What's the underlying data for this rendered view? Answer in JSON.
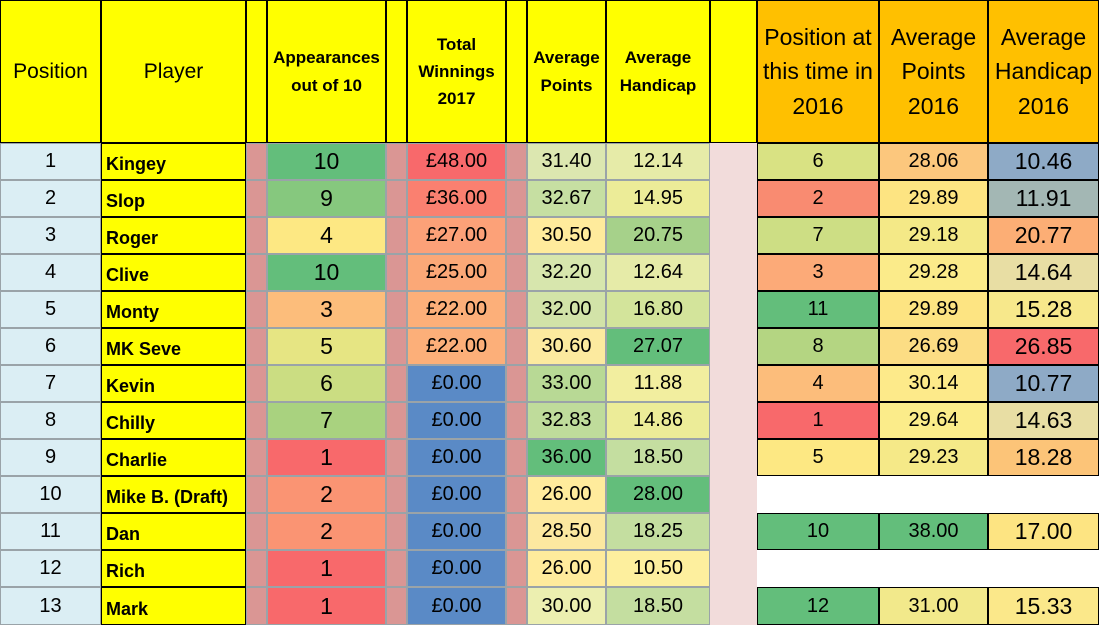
{
  "headers": {
    "position": "Position",
    "player": "Player",
    "appearances": "Appearances out of 10",
    "total_winnings": "Total Winnings 2017",
    "average_points": "Average Points",
    "average_handicap": "Average Handicap",
    "position_2016": "Position at this time in 2016",
    "average_points_2016": "Average Points 2016",
    "average_handicap_2016": "Average Handicap 2016"
  },
  "rows": [
    {
      "position": "1",
      "player": "Kingey",
      "appearances": "10",
      "winnings": "£48.00",
      "avg_points": "31.40",
      "avg_handicap": "12.14",
      "pos_2016": "6",
      "avg_points_2016": "28.06",
      "avg_handicap_2016": "10.46"
    },
    {
      "position": "2",
      "player": "Slop",
      "appearances": "9",
      "winnings": "£36.00",
      "avg_points": "32.67",
      "avg_handicap": "14.95",
      "pos_2016": "2",
      "avg_points_2016": "29.89",
      "avg_handicap_2016": "11.91"
    },
    {
      "position": "3",
      "player": "Roger",
      "appearances": "4",
      "winnings": "£27.00",
      "avg_points": "30.50",
      "avg_handicap": "20.75",
      "pos_2016": "7",
      "avg_points_2016": "29.18",
      "avg_handicap_2016": "20.77"
    },
    {
      "position": "4",
      "player": "Clive",
      "appearances": "10",
      "winnings": "£25.00",
      "avg_points": "32.20",
      "avg_handicap": "12.64",
      "pos_2016": "3",
      "avg_points_2016": "29.28",
      "avg_handicap_2016": "14.64"
    },
    {
      "position": "5",
      "player": "Monty",
      "appearances": "3",
      "winnings": "£22.00",
      "avg_points": "32.00",
      "avg_handicap": "16.80",
      "pos_2016": "11",
      "avg_points_2016": "29.89",
      "avg_handicap_2016": "15.28"
    },
    {
      "position": "6",
      "player": "MK Seve",
      "appearances": "5",
      "winnings": "£22.00",
      "avg_points": "30.60",
      "avg_handicap": "27.07",
      "pos_2016": "8",
      "avg_points_2016": "26.69",
      "avg_handicap_2016": "26.85"
    },
    {
      "position": "7",
      "player": "Kevin",
      "appearances": "6",
      "winnings": "£0.00",
      "avg_points": "33.00",
      "avg_handicap": "11.88",
      "pos_2016": "4",
      "avg_points_2016": "30.14",
      "avg_handicap_2016": "10.77"
    },
    {
      "position": "8",
      "player": "Chilly",
      "appearances": "7",
      "winnings": "£0.00",
      "avg_points": "32.83",
      "avg_handicap": "14.86",
      "pos_2016": "1",
      "avg_points_2016": "29.64",
      "avg_handicap_2016": "14.63"
    },
    {
      "position": "9",
      "player": "Charlie",
      "appearances": "1",
      "winnings": "£0.00",
      "avg_points": "36.00",
      "avg_handicap": "18.50",
      "pos_2016": "5",
      "avg_points_2016": "29.23",
      "avg_handicap_2016": "18.28"
    },
    {
      "position": "10",
      "player": "Mike B. (Draft)",
      "appearances": "2",
      "winnings": "£0.00",
      "avg_points": "26.00",
      "avg_handicap": "28.00",
      "pos_2016": "",
      "avg_points_2016": "",
      "avg_handicap_2016": ""
    },
    {
      "position": "11",
      "player": "Dan",
      "appearances": "2",
      "winnings": "£0.00",
      "avg_points": "28.50",
      "avg_handicap": "18.25",
      "pos_2016": "10",
      "avg_points_2016": "38.00",
      "avg_handicap_2016": "17.00"
    },
    {
      "position": "12",
      "player": "Rich",
      "appearances": "1",
      "winnings": "£0.00",
      "avg_points": "26.00",
      "avg_handicap": "10.50",
      "pos_2016": "",
      "avg_points_2016": "",
      "avg_handicap_2016": ""
    },
    {
      "position": "13",
      "player": "Mark",
      "appearances": "1",
      "winnings": "£0.00",
      "avg_points": "30.00",
      "avg_handicap": "18.50",
      "pos_2016": "12",
      "avg_points_2016": "31.00",
      "avg_handicap_2016": "15.33"
    }
  ],
  "fills": [
    {
      "appearances": "#63be7b",
      "winnings": "#f8696b",
      "avg_points": "#dce7b0",
      "avg_handicap": "#e6eba8",
      "pos_2016": "#d9e283",
      "avg_points_2016": "#fcc77d",
      "avg_handicap_2016": "#8eaac6"
    },
    {
      "appearances": "#86c87e",
      "winnings": "#fa8070",
      "avg_points": "#c6dfa2",
      "avg_handicap": "#ecec98",
      "pos_2016": "#f98b71",
      "avg_points_2016": "#fde482",
      "avg_handicap_2016": "#a3b7b4"
    },
    {
      "appearances": "#fde883",
      "winnings": "#fca178",
      "avg_points": "#ffeb9c",
      "avg_handicap": "#a6d18a",
      "pos_2016": "#cdde84",
      "avg_points_2016": "#f4e987",
      "avg_handicap_2016": "#fcae75"
    },
    {
      "appearances": "#63be7b",
      "winnings": "#fba877",
      "avg_points": "#d7e6ad",
      "avg_handicap": "#e6eba8",
      "pos_2016": "#fcaa78",
      "avg_points_2016": "#fbeb8a",
      "avg_handicap_2016": "#e8dea4"
    },
    {
      "appearances": "#fcbd7b",
      "winnings": "#fcaf79",
      "avg_points": "#d2e3a8",
      "avg_handicap": "#d3e49b",
      "pos_2016": "#63be7b",
      "avg_points_2016": "#fde482",
      "avg_handicap_2016": "#f7e88b"
    },
    {
      "appearances": "#e6e583",
      "winnings": "#fcaf79",
      "avg_points": "#fcea9f",
      "avg_handicap": "#63be7b",
      "pos_2016": "#b4d582",
      "avg_points_2016": "#fcdd84",
      "avg_handicap_2016": "#f8696b"
    },
    {
      "appearances": "#cbdd82",
      "winnings": "#5a8ac6",
      "avg_points": "#b8d995",
      "avg_handicap": "#f2ee9f",
      "pos_2016": "#fcbd7b",
      "avg_points_2016": "#fdea8a",
      "avg_handicap_2016": "#8eaac6"
    },
    {
      "appearances": "#a9d27f",
      "winnings": "#5a8ac6",
      "avg_points": "#bfdc9b",
      "avg_handicap": "#ecec98",
      "pos_2016": "#f8696b",
      "avg_points_2016": "#fbec8a",
      "avg_handicap_2016": "#e8dea4"
    },
    {
      "appearances": "#f8696b",
      "winnings": "#5a8ac6",
      "avg_points": "#63be7b",
      "avg_handicap": "#c4dea0",
      "pos_2016": "#fde883",
      "avg_points_2016": "#f5e988",
      "avg_handicap_2016": "#fcc478"
    },
    {
      "appearances": "#fa9473",
      "winnings": "#5a8ac6",
      "avg_points": "#ffeb9c",
      "avg_handicap": "#63be7b",
      "pos_2016": "",
      "avg_points_2016": "",
      "avg_handicap_2016": ""
    },
    {
      "appearances": "#fa9473",
      "winnings": "#5a8ac6",
      "avg_points": "#fce8a0",
      "avg_handicap": "#c4dea0",
      "pos_2016": "#63be7b",
      "avg_points_2016": "#63be7b",
      "avg_handicap_2016": "#fde482"
    },
    {
      "appearances": "#f8696b",
      "winnings": "#5a8ac6",
      "avg_points": "#ffeb9c",
      "avg_handicap": "#fdef9e",
      "pos_2016": "",
      "avg_points_2016": "",
      "avg_handicap_2016": ""
    },
    {
      "appearances": "#f8696b",
      "winnings": "#5a8ac6",
      "avg_points": "#ecefb0",
      "avg_handicap": "#c4dea0",
      "pos_2016": "#63be7b",
      "avg_points_2016": "#f2e98b",
      "avg_handicap_2016": "#fbe88a"
    }
  ]
}
